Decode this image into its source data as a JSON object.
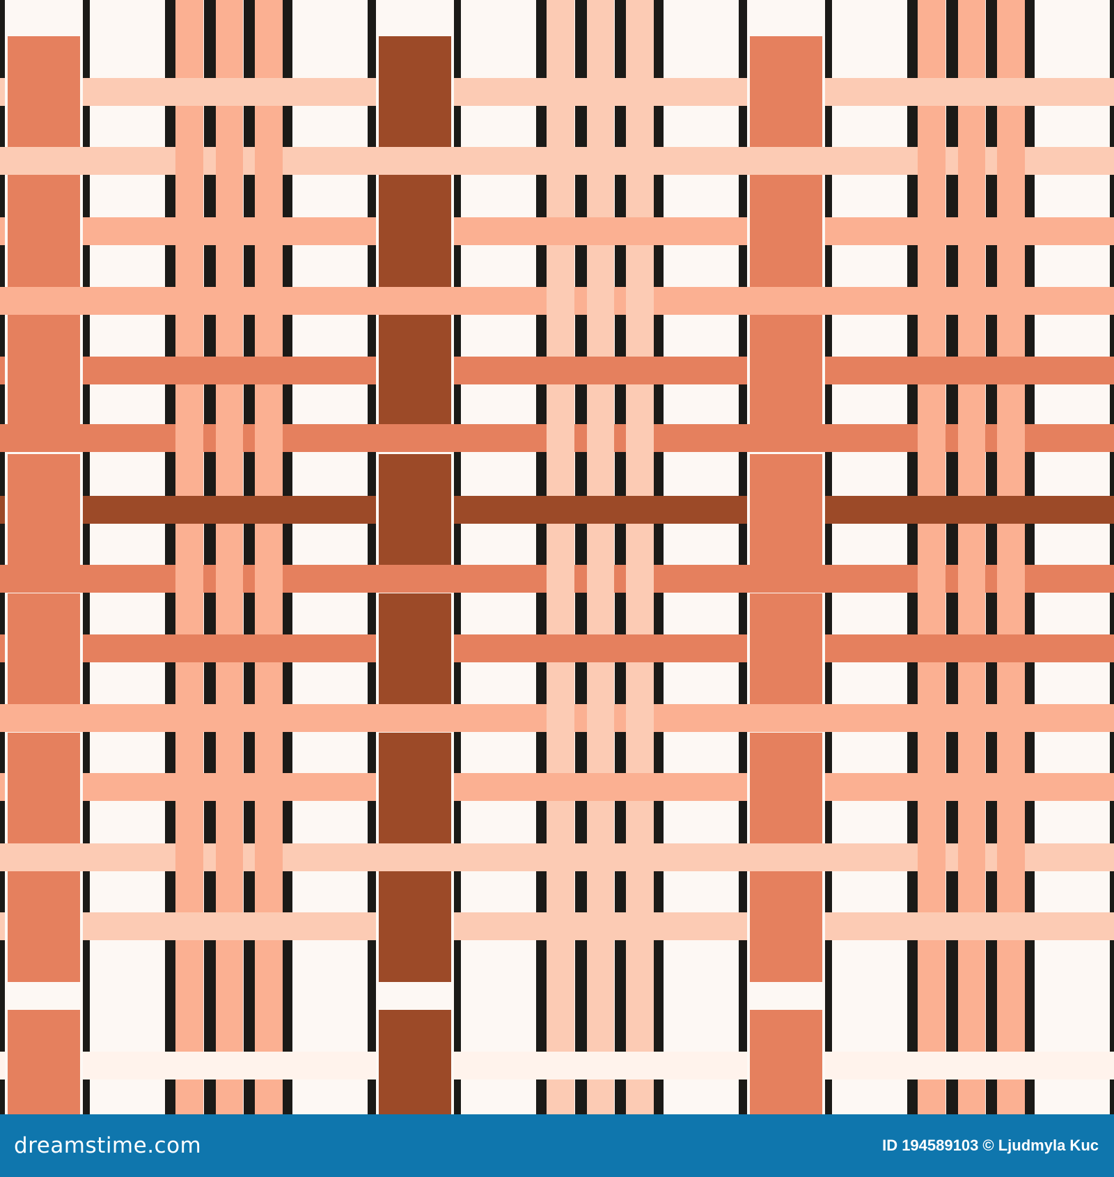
{
  "colors": {
    "background": "#fdf8f4",
    "black_line": "#1b1a17",
    "terracotta": "#e5805e",
    "rust": "#9c4a28",
    "salmon": "#fbb092",
    "peach": "#fccbb4",
    "footer": "#0f76ad"
  },
  "footer": {
    "brand": "dreamstime.com",
    "credit": "ID 194589103 © Ljudmyla Kuc"
  }
}
